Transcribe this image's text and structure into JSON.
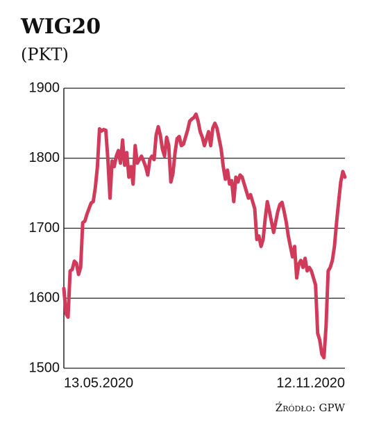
{
  "chart_data": {
    "type": "line",
    "title": "WIG20",
    "subtitle": "(PKT)",
    "source": "Źródło: GPW",
    "categories": [
      "13.05.2020",
      null,
      null,
      null,
      null,
      null,
      null,
      null,
      null,
      null,
      null,
      null,
      null,
      null,
      null,
      null,
      null,
      null,
      null,
      null,
      null,
      null,
      null,
      null,
      null,
      null,
      null,
      null,
      null,
      null,
      null,
      null,
      null,
      null,
      null,
      null,
      null,
      null,
      null,
      null,
      null,
      null,
      null,
      null,
      null,
      null,
      null,
      null,
      null,
      null,
      null,
      null,
      null,
      null,
      null,
      null,
      null,
      null,
      null,
      null,
      null,
      null,
      null,
      null,
      null,
      null,
      null,
      null,
      null,
      null,
      null,
      null,
      null,
      null,
      null,
      null,
      null,
      null,
      null,
      null,
      null,
      null,
      null,
      null,
      null,
      null,
      null,
      null,
      null,
      null,
      null,
      null,
      null,
      null,
      null,
      null,
      null,
      null,
      null,
      null,
      null,
      null,
      null,
      null,
      null,
      null,
      null,
      null,
      null,
      null,
      null,
      null,
      null,
      null,
      null,
      null,
      null,
      null,
      null,
      null,
      null,
      null,
      null,
      null,
      null,
      null,
      null,
      null,
      null,
      null,
      null,
      null,
      null,
      null,
      "12.11.2020"
    ],
    "series": [
      {
        "name": "WIG20",
        "color": "#d13b5b",
        "values": [
          1614,
          1578,
          1573,
          1639,
          1641,
          1653,
          1650,
          1634,
          1644,
          1708,
          1710,
          1720,
          1728,
          1736,
          1738,
          1758,
          1788,
          1842,
          1839,
          1841,
          1840,
          1798,
          1743,
          1796,
          1788,
          1803,
          1811,
          1793,
          1826,
          1790,
          1808,
          1773,
          1788,
          1763,
          1818,
          1793,
          1798,
          1803,
          1796,
          1788,
          1776,
          1798,
          1803,
          1798,
          1833,
          1845,
          1833,
          1813,
          1803,
          1830,
          1818,
          1766,
          1778,
          1808,
          1828,
          1831,
          1818,
          1820,
          1830,
          1840,
          1853,
          1856,
          1858,
          1863,
          1853,
          1838,
          1830,
          1818,
          1828,
          1838,
          1818,
          1843,
          1850,
          1843,
          1828,
          1813,
          1788,
          1770,
          1783,
          1763,
          1768,
          1738,
          1773,
          1766,
          1776,
          1773,
          1763,
          1753,
          1743,
          1748,
          1738,
          1728,
          1684,
          1689,
          1674,
          1684,
          1714,
          1738,
          1724,
          1709,
          1694,
          1709,
          1724,
          1734,
          1737,
          1724,
          1709,
          1689,
          1674,
          1659,
          1674,
          1629,
          1649,
          1654,
          1644,
          1657,
          1639,
          1644,
          1639,
          1629,
          1619,
          1550,
          1540,
          1520,
          1515,
          1560,
          1639,
          1644,
          1654,
          1674,
          1708,
          1738,
          1766,
          1781,
          1773
        ]
      }
    ],
    "ylim": [
      1500,
      1900
    ],
    "yticks": [
      1500,
      1600,
      1700,
      1800,
      1900
    ],
    "grid": true
  }
}
